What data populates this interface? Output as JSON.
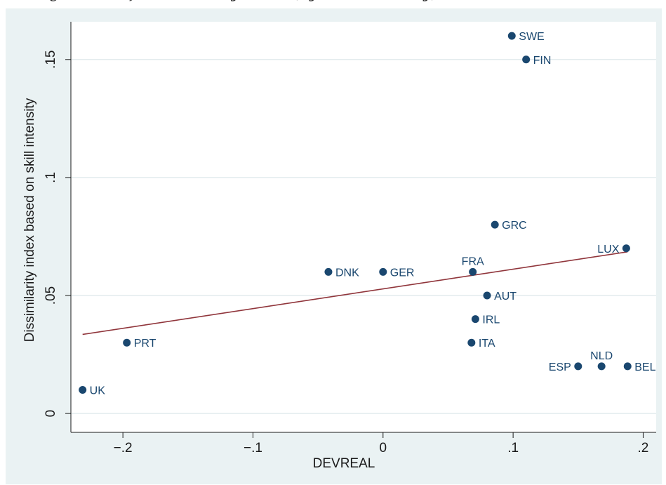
{
  "header_text": "egression of Dissimilarity Index (by Skill Intensity)",
  "chart_data": {
    "type": "scatter",
    "xlabel": "DEVREAL",
    "ylabel": "Dissimilarity index based on skill intensity",
    "xlim": [
      -0.24,
      0.21
    ],
    "ylim": [
      -0.008,
      0.166
    ],
    "x_ticks": [
      -0.2,
      -0.1,
      0,
      0.1,
      0.2
    ],
    "x_tick_labels": [
      "−.2",
      "−.1",
      "0",
      ".1",
      ".2"
    ],
    "y_ticks": [
      0,
      0.05,
      0.1,
      0.15
    ],
    "y_tick_labels": [
      "0",
      ".05",
      ".1",
      ".15"
    ],
    "grid": "horizontal",
    "colors": {
      "background": "#eaf2f3",
      "plot_area": "#ffffff",
      "gridline": "#e3ebee",
      "marker": "#1a476f",
      "fit_line": "#90353b",
      "label": "#1a476f"
    },
    "points": [
      {
        "label": "SWE",
        "x": 0.099,
        "y": 0.16,
        "label_pos": "right"
      },
      {
        "label": "FIN",
        "x": 0.11,
        "y": 0.15,
        "label_pos": "right"
      },
      {
        "label": "GRC",
        "x": 0.086,
        "y": 0.08,
        "label_pos": "right"
      },
      {
        "label": "LUX",
        "x": 0.187,
        "y": 0.07,
        "label_pos": "left"
      },
      {
        "label": "DNK",
        "x": -0.042,
        "y": 0.06,
        "label_pos": "right"
      },
      {
        "label": "GER",
        "x": 0.0,
        "y": 0.06,
        "label_pos": "right"
      },
      {
        "label": "FRA",
        "x": 0.069,
        "y": 0.06,
        "label_pos": "above"
      },
      {
        "label": "AUT",
        "x": 0.08,
        "y": 0.05,
        "label_pos": "right"
      },
      {
        "label": "IRL",
        "x": 0.071,
        "y": 0.04,
        "label_pos": "right"
      },
      {
        "label": "PRT",
        "x": -0.197,
        "y": 0.03,
        "label_pos": "right"
      },
      {
        "label": "ITA",
        "x": 0.068,
        "y": 0.03,
        "label_pos": "right"
      },
      {
        "label": "ESP",
        "x": 0.15,
        "y": 0.02,
        "label_pos": "left"
      },
      {
        "label": "NLD",
        "x": 0.168,
        "y": 0.02,
        "label_pos": "above"
      },
      {
        "label": "BEL",
        "x": 0.188,
        "y": 0.02,
        "label_pos": "right"
      },
      {
        "label": "UK",
        "x": -0.231,
        "y": 0.01,
        "label_pos": "right"
      }
    ],
    "fit_line": {
      "x": [
        -0.231,
        0.188
      ],
      "y": [
        0.0335,
        0.0685
      ]
    }
  }
}
